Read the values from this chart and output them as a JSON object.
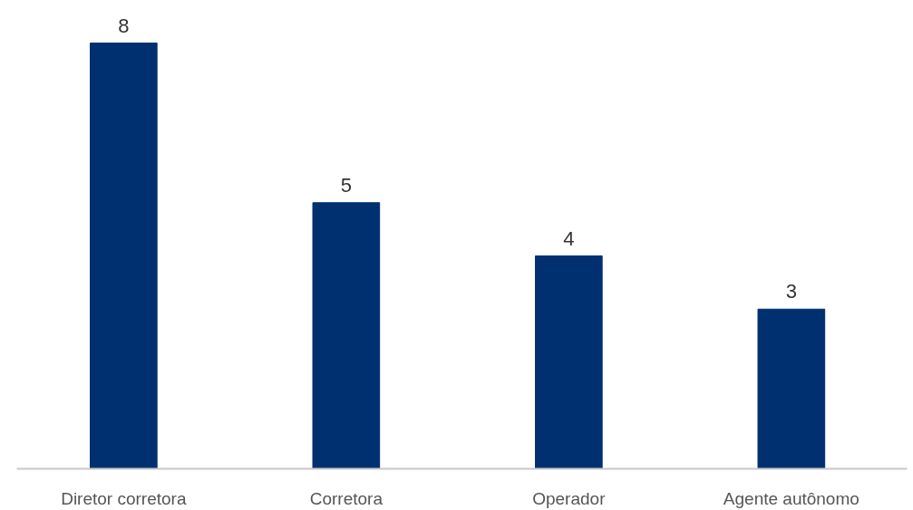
{
  "chart_data": {
    "type": "bar",
    "categories": [
      "Diretor corretora",
      "Corretora",
      "Operador",
      "Agente autônomo"
    ],
    "values": [
      8,
      5,
      4,
      3
    ],
    "color": "#003070",
    "data_labels": true,
    "grid": false
  }
}
